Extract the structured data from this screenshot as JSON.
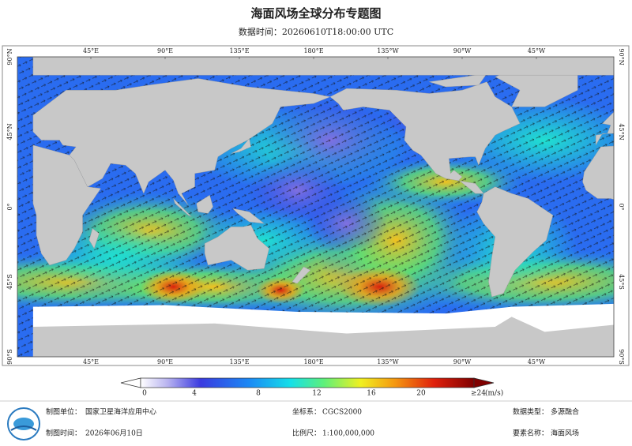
{
  "header": {
    "title": "海面风场全球分布专题图",
    "subtitle": "数据时间：20260610T18:00:00 UTC"
  },
  "map": {
    "top_labels": [
      "45°E",
      "90°E",
      "135°E",
      "180°E",
      "135°W",
      "90°W",
      "45°W"
    ],
    "bottom_labels": [
      "45°E",
      "90°E",
      "135°E",
      "180°E",
      "135°W",
      "90°W",
      "45°W"
    ],
    "left_labels": [
      "90°N",
      "45°N",
      "0°",
      "45°S",
      "90°S"
    ],
    "right_labels": [
      "90°N",
      "45°N",
      "0°",
      "45°S",
      "90°S"
    ]
  },
  "legend": {
    "ticks": [
      0,
      4,
      8,
      12,
      16,
      20
    ],
    "max_label": "≥24",
    "unit": "(m/s)"
  },
  "footer": {
    "items": [
      {
        "label": "制图单位：",
        "value": "国家卫星海洋应用中心"
      },
      {
        "label": "制图时间：",
        "value": "2026年06月10日"
      },
      {
        "label": "坐标系：",
        "value": "CGCS2000"
      },
      {
        "label": "比例尺：",
        "value": "1:100,000,000"
      },
      {
        "label": "数据类型：",
        "value": "多源融合"
      },
      {
        "label": "要素名称：",
        "value": "海面风场"
      }
    ]
  }
}
